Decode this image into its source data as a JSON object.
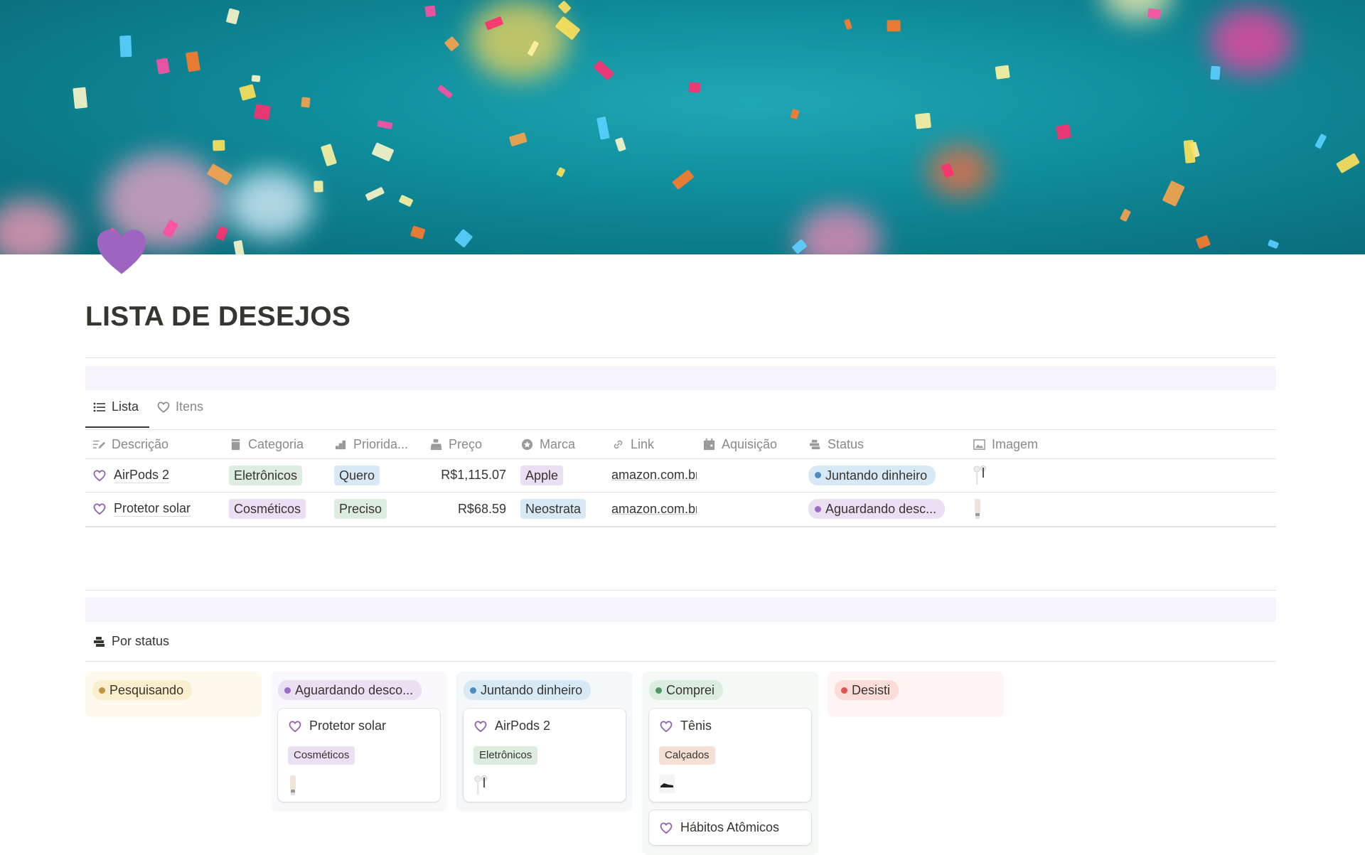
{
  "page": {
    "title": "LISTA DE DESEJOS",
    "icon": "purple-heart-icon"
  },
  "colors": {
    "accent": "#9065b0",
    "cover": "#0e8a99"
  },
  "views": {
    "tabs": [
      {
        "label": "Lista",
        "icon": "list-icon",
        "active": true
      },
      {
        "label": "Itens",
        "icon": "heart-icon",
        "active": false
      }
    ]
  },
  "table": {
    "columns": [
      {
        "label": "Descrição",
        "icon": "text-icon"
      },
      {
        "label": "Categoria",
        "icon": "select-icon"
      },
      {
        "label": "Priorida...",
        "icon": "priority-icon"
      },
      {
        "label": "Preço",
        "icon": "register-icon"
      },
      {
        "label": "Marca",
        "icon": "star-badge-icon"
      },
      {
        "label": "Link",
        "icon": "link-icon"
      },
      {
        "label": "Aquisição",
        "icon": "calendar-icon"
      },
      {
        "label": "Status",
        "icon": "status-icon"
      },
      {
        "label": "Imagem",
        "icon": "image-icon"
      }
    ],
    "rows": [
      {
        "descricao": "AirPods 2",
        "categoria": "Eletrônicos",
        "prioridade": "Quero",
        "preco": "R$1,115.07",
        "marca": "Apple",
        "link": "amazon.com.br",
        "aquisicao": "",
        "status": "Juntando dinheiro",
        "imagem": "airpods-thumbnail"
      },
      {
        "descricao": "Protetor solar",
        "categoria": "Cosméticos",
        "prioridade": "Preciso",
        "preco": "R$68.59",
        "marca": "Neostrata",
        "link": "amazon.com.br",
        "aquisicao": "",
        "status": "Aguardando desc...",
        "imagem": "sunscreen-thumbnail"
      }
    ]
  },
  "board": {
    "view_label": "Por status",
    "groups": [
      {
        "label": "Pesquisando",
        "cards": []
      },
      {
        "label": "Aguardando desco...",
        "cards": [
          {
            "title": "Protetor solar",
            "tag": "Cosméticos",
            "image": "sunscreen-thumbnail"
          }
        ]
      },
      {
        "label": "Juntando dinheiro",
        "cards": [
          {
            "title": "AirPods 2",
            "tag": "Eletrônicos",
            "image": "airpods-thumbnail"
          }
        ]
      },
      {
        "label": "Comprei",
        "cards": [
          {
            "title": "Tênis",
            "tag": "Calçados",
            "image": "sneaker-thumbnail"
          },
          {
            "title": "Hábitos Atômicos"
          }
        ]
      },
      {
        "label": "Desisti",
        "cards": []
      }
    ]
  }
}
